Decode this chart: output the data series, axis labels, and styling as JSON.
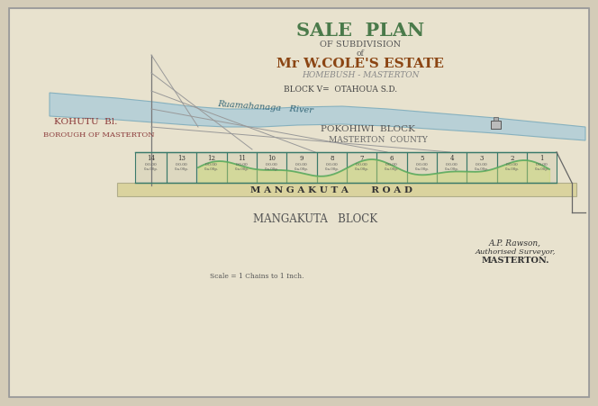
{
  "bg_color": "#d4ccb8",
  "paper_color": "#e8e2ce",
  "title_line1": "SALE  PLAN",
  "title_line2": "OF SUBDIVISION",
  "title_line3": "of",
  "title_line4": "Mr W.COLE'S ESTATE",
  "title_line5": "HOMEBUSH - MASTERTON",
  "river_label": "Ruamahanaga   River",
  "block_v_label": "BLOCK V=  OTAHOUA S.D.",
  "kohutu_label": "KOHUTU  Bl.",
  "borough_label": "BOROUGH OF MASTERTON",
  "pokohiwi_label": "POKOHIWI  BLOCK",
  "masterton_county_label": "MASTERTON  COUNTY",
  "road_label": "M A N G A K U T A       R O A D",
  "mangakuta_block_label": "MANGAKUTA   BLOCK",
  "surveyor_line1": "A.P. Rawson,",
  "surveyor_line2": "Authorised Surveyor,",
  "surveyor_line3": "MASTERTON.",
  "scale_label": "Scale = 1 Chains to 1 Inch.",
  "river_color": "#b0cdd8",
  "lot_line_color": "#3a7a6a",
  "title1_color": "#4a7a4a",
  "title4_color": "#8b4513",
  "title5_color": "#888888",
  "kohutu_color": "#8b3a3a",
  "borough_color": "#8b3a3a",
  "road_text_color": "#333333",
  "surveyor_color": "#333333"
}
